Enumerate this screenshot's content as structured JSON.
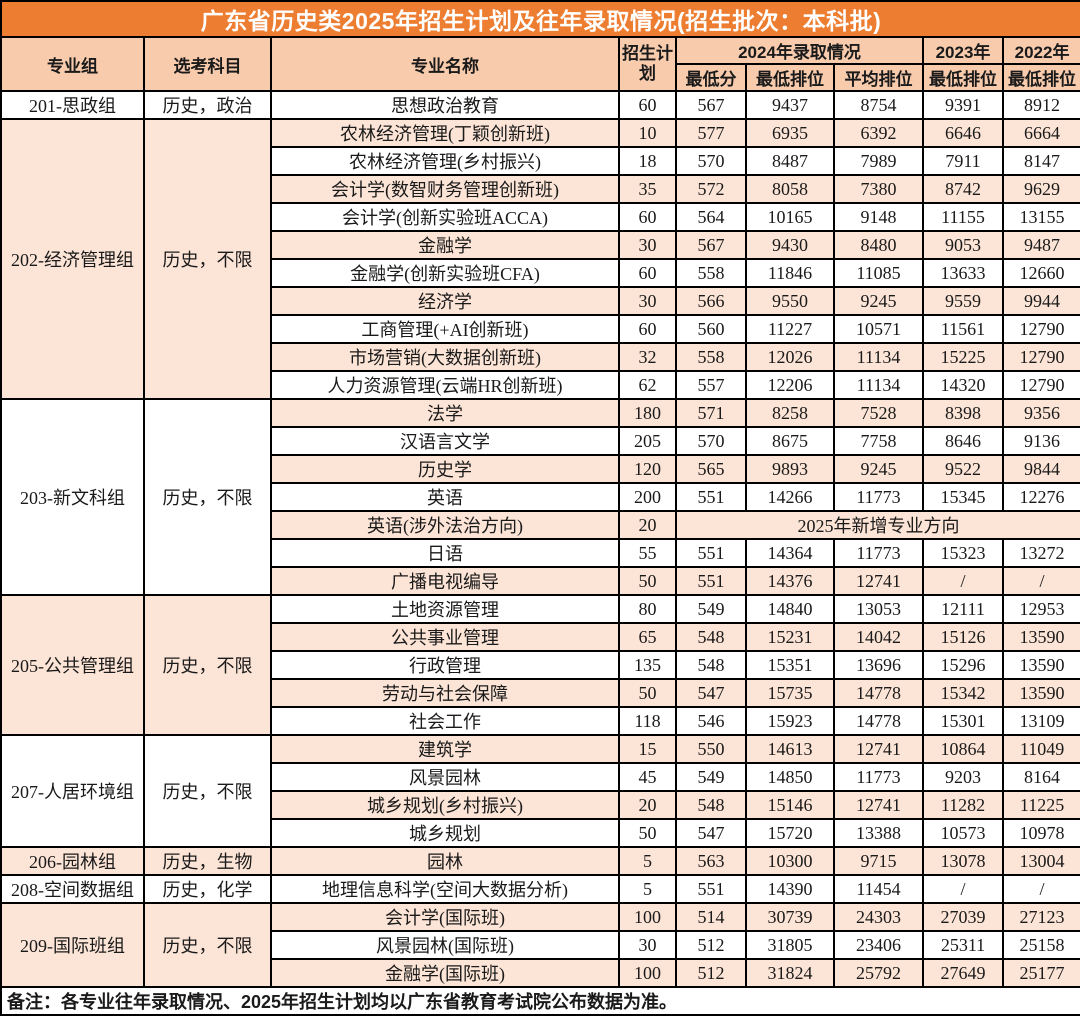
{
  "title": "广东省历史类2025年招生计划及往年录取情况(招生批次：本科批)",
  "header": {
    "group": "专业组",
    "subjects": "选考科目",
    "major": "专业名称",
    "plan": "招生计划",
    "section2024": "2024年录取情况",
    "min_score": "最低分",
    "min_rank": "最低排位",
    "avg_rank": "平均排位",
    "year2023": "2023年",
    "year2022": "2022年"
  },
  "note": "备注：各专业往年录取情况、2025年招生计划均以广东省教育考试院公布数据为准。",
  "colors": {
    "title_bg": "#ED7D31",
    "title_text": "#FFFFFF",
    "header_bg": "#F8CBAD",
    "stripe_bg": "#FCE4D6",
    "row_bg": "#FFFFFF",
    "border": "#000000",
    "text": "#1A1A1A"
  },
  "table": {
    "groups": [
      {
        "name": "201-思政组",
        "subjects": "历史，政治",
        "majors": [
          {
            "major": "思想政治教育",
            "plan": "60",
            "min_score": "567",
            "min_rank": "9437",
            "avg_rank": "8754",
            "rank2023": "9391",
            "rank2022": "8912"
          }
        ]
      },
      {
        "name": "202-经济管理组",
        "subjects": "历史，不限",
        "majors": [
          {
            "major": "农林经济管理(丁颖创新班)",
            "plan": "10",
            "min_score": "577",
            "min_rank": "6935",
            "avg_rank": "6392",
            "rank2023": "6646",
            "rank2022": "6664"
          },
          {
            "major": "农林经济管理(乡村振兴)",
            "plan": "18",
            "min_score": "570",
            "min_rank": "8487",
            "avg_rank": "7989",
            "rank2023": "7911",
            "rank2022": "8147"
          },
          {
            "major": "会计学(数智财务管理创新班)",
            "plan": "35",
            "min_score": "572",
            "min_rank": "8058",
            "avg_rank": "7380",
            "rank2023": "8742",
            "rank2022": "9629"
          },
          {
            "major": "会计学(创新实验班ACCA)",
            "plan": "60",
            "min_score": "564",
            "min_rank": "10165",
            "avg_rank": "9148",
            "rank2023": "11155",
            "rank2022": "13155"
          },
          {
            "major": "金融学",
            "plan": "30",
            "min_score": "567",
            "min_rank": "9430",
            "avg_rank": "8480",
            "rank2023": "9053",
            "rank2022": "9487"
          },
          {
            "major": "金融学(创新实验班CFA)",
            "plan": "60",
            "min_score": "558",
            "min_rank": "11846",
            "avg_rank": "11085",
            "rank2023": "13633",
            "rank2022": "12660"
          },
          {
            "major": "经济学",
            "plan": "30",
            "min_score": "566",
            "min_rank": "9550",
            "avg_rank": "9245",
            "rank2023": "9559",
            "rank2022": "9944"
          },
          {
            "major": "工商管理(+AI创新班)",
            "plan": "60",
            "min_score": "560",
            "min_rank": "11227",
            "avg_rank": "10571",
            "rank2023": "11561",
            "rank2022": "12790"
          },
          {
            "major": "市场营销(大数据创新班)",
            "plan": "32",
            "min_score": "558",
            "min_rank": "12026",
            "avg_rank": "11134",
            "rank2023": "15225",
            "rank2022": "12790"
          },
          {
            "major": "人力资源管理(云端HR创新班)",
            "plan": "62",
            "min_score": "557",
            "min_rank": "12206",
            "avg_rank": "11134",
            "rank2023": "14320",
            "rank2022": "12790"
          }
        ]
      },
      {
        "name": "203-新文科组",
        "subjects": "历史，不限",
        "majors": [
          {
            "major": "法学",
            "plan": "180",
            "min_score": "571",
            "min_rank": "8258",
            "avg_rank": "7528",
            "rank2023": "8398",
            "rank2022": "9356"
          },
          {
            "major": "汉语言文学",
            "plan": "205",
            "min_score": "570",
            "min_rank": "8675",
            "avg_rank": "7758",
            "rank2023": "8646",
            "rank2022": "9136"
          },
          {
            "major": "历史学",
            "plan": "120",
            "min_score": "565",
            "min_rank": "9893",
            "avg_rank": "9245",
            "rank2023": "9522",
            "rank2022": "9844"
          },
          {
            "major": "英语",
            "plan": "200",
            "min_score": "551",
            "min_rank": "14266",
            "avg_rank": "11773",
            "rank2023": "15345",
            "rank2022": "12276"
          },
          {
            "major": "英语(涉外法治方向)",
            "plan": "20",
            "merged": "2025年新增专业方向"
          },
          {
            "major": "日语",
            "plan": "55",
            "min_score": "551",
            "min_rank": "14364",
            "avg_rank": "11773",
            "rank2023": "15323",
            "rank2022": "13272"
          },
          {
            "major": "广播电视编导",
            "plan": "50",
            "min_score": "551",
            "min_rank": "14376",
            "avg_rank": "12741",
            "rank2023": "/",
            "rank2022": "/"
          }
        ]
      },
      {
        "name": "205-公共管理组",
        "subjects": "历史，不限",
        "majors": [
          {
            "major": "土地资源管理",
            "plan": "80",
            "min_score": "549",
            "min_rank": "14840",
            "avg_rank": "13053",
            "rank2023": "12111",
            "rank2022": "12953"
          },
          {
            "major": "公共事业管理",
            "plan": "65",
            "min_score": "548",
            "min_rank": "15231",
            "avg_rank": "14042",
            "rank2023": "15126",
            "rank2022": "13590"
          },
          {
            "major": "行政管理",
            "plan": "135",
            "min_score": "548",
            "min_rank": "15351",
            "avg_rank": "13696",
            "rank2023": "15296",
            "rank2022": "13590"
          },
          {
            "major": "劳动与社会保障",
            "plan": "50",
            "min_score": "547",
            "min_rank": "15735",
            "avg_rank": "14778",
            "rank2023": "15342",
            "rank2022": "13590"
          },
          {
            "major": "社会工作",
            "plan": "118",
            "min_score": "546",
            "min_rank": "15923",
            "avg_rank": "14778",
            "rank2023": "15301",
            "rank2022": "13109"
          }
        ]
      },
      {
        "name": "207-人居环境组",
        "subjects": "历史，不限",
        "majors": [
          {
            "major": "建筑学",
            "plan": "15",
            "min_score": "550",
            "min_rank": "14613",
            "avg_rank": "12741",
            "rank2023": "10864",
            "rank2022": "11049"
          },
          {
            "major": "风景园林",
            "plan": "45",
            "min_score": "549",
            "min_rank": "14850",
            "avg_rank": "11773",
            "rank2023": "9203",
            "rank2022": "8164"
          },
          {
            "major": "城乡规划(乡村振兴)",
            "plan": "20",
            "min_score": "548",
            "min_rank": "15146",
            "avg_rank": "12741",
            "rank2023": "11282",
            "rank2022": "11225"
          },
          {
            "major": "城乡规划",
            "plan": "50",
            "min_score": "547",
            "min_rank": "15720",
            "avg_rank": "13388",
            "rank2023": "10573",
            "rank2022": "10978"
          }
        ]
      },
      {
        "name": "206-园林组",
        "subjects": "历史，生物",
        "majors": [
          {
            "major": "园林",
            "plan": "5",
            "min_score": "563",
            "min_rank": "10300",
            "avg_rank": "9715",
            "rank2023": "13078",
            "rank2022": "13004"
          }
        ]
      },
      {
        "name": "208-空间数据组",
        "subjects": "历史，化学",
        "majors": [
          {
            "major": "地理信息科学(空间大数据分析)",
            "plan": "5",
            "min_score": "551",
            "min_rank": "14390",
            "avg_rank": "11454",
            "rank2023": "/",
            "rank2022": "/"
          }
        ]
      },
      {
        "name": "209-国际班组",
        "subjects": "历史，不限",
        "majors": [
          {
            "major": "会计学(国际班)",
            "plan": "100",
            "min_score": "514",
            "min_rank": "30739",
            "avg_rank": "24303",
            "rank2023": "27039",
            "rank2022": "27123"
          },
          {
            "major": "风景园林(国际班)",
            "plan": "30",
            "min_score": "512",
            "min_rank": "31805",
            "avg_rank": "23406",
            "rank2023": "25311",
            "rank2022": "25158"
          },
          {
            "major": "金融学(国际班)",
            "plan": "100",
            "min_score": "512",
            "min_rank": "31824",
            "avg_rank": "25792",
            "rank2023": "27649",
            "rank2022": "25177"
          }
        ]
      }
    ]
  }
}
